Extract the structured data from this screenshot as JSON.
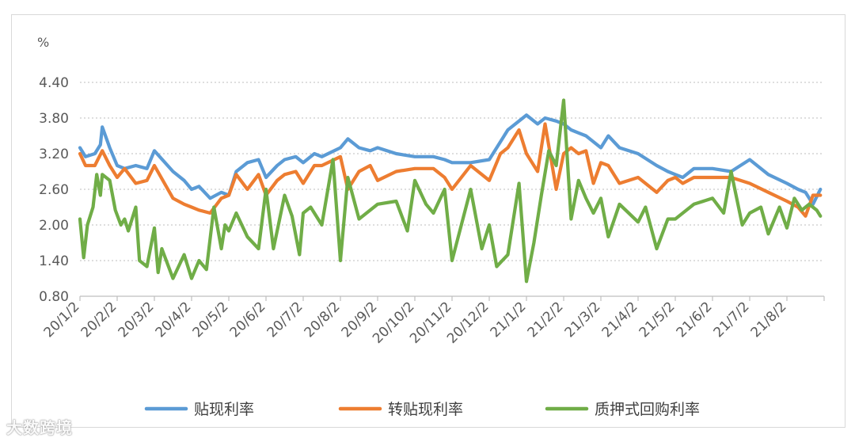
{
  "chart_data": {
    "type": "line",
    "unit_label": "%",
    "ylim": [
      0.8,
      4.4
    ],
    "yticks": [
      "4.40",
      "3.80",
      "3.20",
      "2.60",
      "2.00",
      "1.40",
      "0.80"
    ],
    "ytick_values": [
      4.4,
      3.8,
      3.2,
      2.6,
      2.0,
      1.4,
      0.8
    ],
    "xticks": [
      "20/1/2",
      "20/2/2",
      "20/3/2",
      "20/4/2",
      "20/5/2",
      "20/6/2",
      "20/7/2",
      "20/8/2",
      "20/9/2",
      "20/10/2",
      "20/11/2",
      "20/12/2",
      "21/1/2",
      "21/2/2",
      "21/3/2",
      "21/4/2",
      "21/5/2",
      "21/6/2",
      "21/7/2",
      "21/8/2"
    ],
    "legend_position": "bottom",
    "grid": true,
    "series": [
      {
        "name": "贴现利率",
        "color": "#5b9bd5",
        "x": [
          0,
          0.15,
          0.4,
          0.55,
          0.6,
          0.8,
          1.0,
          1.2,
          1.5,
          1.8,
          2.0,
          2.5,
          2.8,
          3.0,
          3.2,
          3.5,
          3.8,
          4.0,
          4.2,
          4.5,
          4.8,
          5.0,
          5.3,
          5.5,
          5.8,
          6.0,
          6.3,
          6.5,
          7.0,
          7.2,
          7.5,
          7.8,
          8.0,
          8.5,
          9.0,
          9.5,
          9.8,
          10.0,
          10.5,
          11.0,
          11.5,
          12.0,
          12.3,
          12.5,
          12.8,
          13.0,
          13.2,
          13.4,
          13.6,
          13.8,
          14.0,
          14.2,
          14.5,
          15.0,
          15.5,
          15.8,
          16.0,
          16.2,
          16.5,
          17.0,
          17.5,
          18.0,
          18.5,
          19.0,
          19.3,
          19.5,
          19.7,
          19.9
        ],
        "values": [
          3.3,
          3.15,
          3.2,
          3.35,
          3.65,
          3.3,
          3.0,
          2.95,
          3.0,
          2.95,
          3.25,
          2.9,
          2.75,
          2.6,
          2.65,
          2.45,
          2.55,
          2.5,
          2.9,
          3.05,
          3.1,
          2.8,
          3.0,
          3.1,
          3.15,
          3.05,
          3.2,
          3.15,
          3.3,
          3.45,
          3.3,
          3.25,
          3.3,
          3.2,
          3.15,
          3.15,
          3.1,
          3.05,
          3.05,
          3.1,
          3.6,
          3.85,
          3.7,
          3.8,
          3.75,
          3.7,
          3.6,
          3.55,
          3.5,
          3.4,
          3.3,
          3.5,
          3.3,
          3.2,
          3.0,
          2.9,
          2.85,
          2.8,
          2.95,
          2.95,
          2.9,
          3.1,
          2.85,
          2.7,
          2.6,
          2.55,
          2.35,
          2.6
        ]
      },
      {
        "name": "转贴现利率",
        "color": "#ed7d31",
        "x": [
          0,
          0.15,
          0.4,
          0.6,
          0.8,
          1.0,
          1.2,
          1.5,
          1.8,
          2.0,
          2.5,
          2.8,
          3.0,
          3.2,
          3.5,
          3.8,
          4.0,
          4.2,
          4.5,
          4.8,
          5.0,
          5.3,
          5.5,
          5.8,
          6.0,
          6.3,
          6.5,
          7.0,
          7.2,
          7.5,
          7.8,
          8.0,
          8.5,
          9.0,
          9.5,
          9.8,
          10.0,
          10.5,
          11.0,
          11.3,
          11.5,
          11.8,
          12.0,
          12.3,
          12.5,
          12.8,
          13.0,
          13.2,
          13.4,
          13.6,
          13.8,
          14.0,
          14.2,
          14.5,
          15.0,
          15.5,
          15.8,
          16.0,
          16.2,
          16.5,
          17.0,
          17.5,
          18.0,
          18.5,
          19.0,
          19.3,
          19.5,
          19.7,
          19.9
        ],
        "values": [
          3.2,
          3.0,
          3.0,
          3.25,
          3.0,
          2.8,
          2.95,
          2.7,
          2.75,
          3.0,
          2.45,
          2.35,
          2.3,
          2.25,
          2.2,
          2.45,
          2.5,
          2.85,
          2.6,
          2.85,
          2.5,
          2.75,
          2.85,
          2.9,
          2.7,
          3.0,
          3.0,
          3.15,
          2.6,
          2.9,
          3.0,
          2.75,
          2.9,
          2.95,
          2.95,
          2.8,
          2.6,
          3.0,
          2.75,
          3.2,
          3.3,
          3.6,
          3.2,
          2.9,
          3.7,
          2.6,
          3.2,
          3.3,
          3.2,
          3.25,
          2.7,
          3.05,
          3.0,
          2.7,
          2.8,
          2.55,
          2.75,
          2.8,
          2.7,
          2.8,
          2.8,
          2.8,
          2.7,
          2.55,
          2.4,
          2.3,
          2.15,
          2.5,
          2.5
        ]
      },
      {
        "name": "质押式回购利率",
        "color": "#70ad47",
        "x": [
          0,
          0.1,
          0.2,
          0.35,
          0.45,
          0.55,
          0.6,
          0.7,
          0.8,
          0.95,
          1.1,
          1.2,
          1.3,
          1.5,
          1.6,
          1.8,
          2.0,
          2.1,
          2.2,
          2.5,
          2.8,
          3.0,
          3.2,
          3.4,
          3.6,
          3.8,
          3.9,
          4.0,
          4.2,
          4.5,
          4.8,
          5.0,
          5.2,
          5.5,
          5.7,
          5.9,
          6.0,
          6.2,
          6.5,
          6.8,
          7.0,
          7.2,
          7.5,
          8.0,
          8.5,
          8.8,
          9.0,
          9.3,
          9.5,
          9.8,
          10.0,
          10.5,
          10.8,
          11.0,
          11.2,
          11.5,
          11.8,
          12.0,
          12.2,
          12.4,
          12.6,
          12.8,
          13.0,
          13.2,
          13.4,
          13.6,
          13.8,
          14.0,
          14.2,
          14.5,
          15.0,
          15.2,
          15.5,
          15.8,
          16.0,
          16.2,
          16.5,
          17.0,
          17.3,
          17.5,
          17.8,
          18.0,
          18.3,
          18.5,
          18.8,
          19.0,
          19.2,
          19.4,
          19.6,
          19.8,
          19.9
        ],
        "values": [
          2.1,
          1.45,
          2.0,
          2.3,
          2.85,
          2.5,
          2.85,
          2.8,
          2.75,
          2.25,
          2.0,
          2.1,
          1.9,
          2.3,
          1.4,
          1.3,
          1.95,
          1.2,
          1.6,
          1.1,
          1.5,
          1.1,
          1.4,
          1.25,
          2.3,
          1.6,
          2.0,
          1.9,
          2.2,
          1.8,
          1.6,
          2.6,
          1.6,
          2.5,
          2.15,
          1.5,
          2.2,
          2.3,
          2.0,
          3.1,
          1.4,
          2.8,
          2.1,
          2.35,
          2.4,
          1.9,
          2.75,
          2.35,
          2.2,
          2.6,
          1.4,
          2.6,
          1.6,
          2.0,
          1.3,
          1.5,
          2.7,
          1.05,
          1.7,
          2.5,
          3.25,
          3.0,
          4.1,
          2.1,
          2.75,
          2.45,
          2.2,
          2.45,
          1.8,
          2.35,
          2.05,
          2.3,
          1.6,
          2.1,
          2.1,
          2.2,
          2.35,
          2.45,
          2.2,
          2.9,
          2.0,
          2.2,
          2.3,
          1.85,
          2.3,
          1.95,
          2.45,
          2.25,
          2.35,
          2.25,
          2.15
        ]
      }
    ]
  },
  "watermark": "大数跨境"
}
